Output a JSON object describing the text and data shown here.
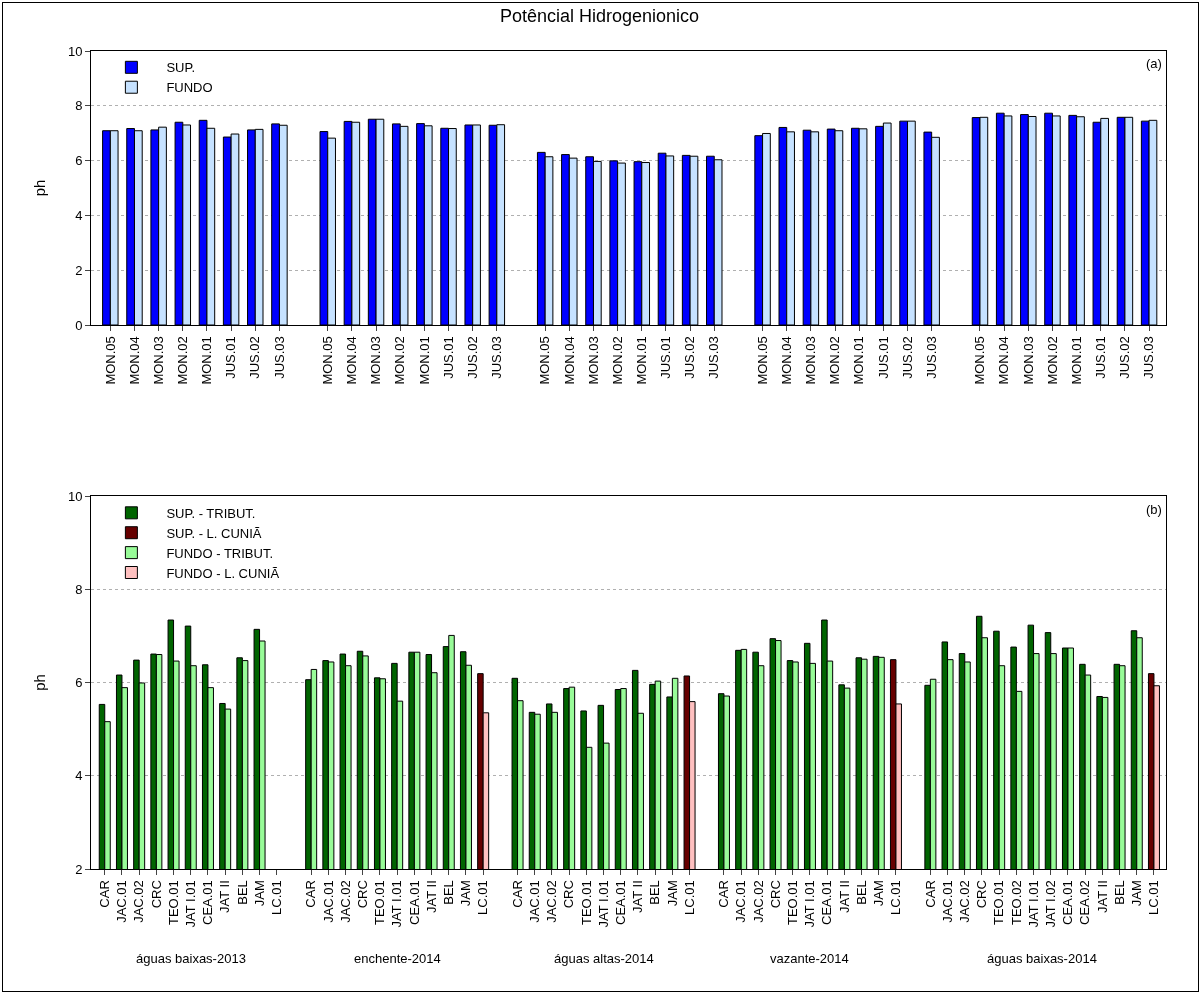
{
  "chart_data": [
    {
      "type": "bar",
      "title": "Potêncial Hidrogenionico",
      "ylabel": "ph",
      "categories": [
        "MON.05",
        "MON.04",
        "MON.03",
        "MON.02",
        "MON.01",
        "JUS.01",
        "JUS.02",
        "JUS.03",
        null,
        "MON.05",
        "MON.04",
        "MON.03",
        "MON.02",
        "MON.01",
        "JUS.01",
        "JUS.02",
        "JUS.03",
        null,
        "MON.05",
        "MON.04",
        "MON.03",
        "MON.02",
        "MON.01",
        "JUS.01",
        "JUS.02",
        "JUS.03",
        null,
        "MON.05",
        "MON.04",
        "MON.03",
        "MON.02",
        "MON.01",
        "JUS.01",
        "JUS.02",
        "JUS.03",
        null,
        "MON.05",
        "MON.04",
        "MON.03",
        "MON.02",
        "MON.01",
        "JUS.01",
        "JUS.02",
        "JUS.03"
      ],
      "series": [
        {
          "name": "SUP.",
          "color": "#0000ff",
          "values": [
            7.09,
            7.17,
            7.12,
            7.4,
            7.47,
            6.86,
            7.12,
            7.34,
            null,
            7.06,
            7.43,
            7.51,
            7.34,
            7.35,
            7.18,
            7.3,
            7.29,
            null,
            6.3,
            6.22,
            6.14,
            5.99,
            5.96,
            6.27,
            6.19,
            6.16,
            null,
            6.91,
            7.21,
            7.11,
            7.15,
            7.18,
            7.25,
            7.44,
            7.04,
            null,
            7.57,
            7.73,
            7.68,
            7.73,
            7.65,
            7.4,
            7.58,
            7.44
          ]
        },
        {
          "name": "FUNDO",
          "color": "#c6e2ff",
          "values": [
            7.09,
            7.09,
            7.22,
            7.3,
            7.18,
            6.97,
            7.14,
            7.29,
            null,
            6.82,
            7.4,
            7.51,
            7.25,
            7.27,
            7.17,
            7.3,
            7.31,
            null,
            6.14,
            6.09,
            5.97,
            5.91,
            5.93,
            6.17,
            6.16,
            6.03,
            null,
            6.99,
            7.05,
            7.05,
            7.09,
            7.16,
            7.37,
            7.44,
            6.85,
            null,
            7.58,
            7.63,
            7.61,
            7.63,
            7.6,
            7.54,
            7.58,
            7.47
          ]
        }
      ],
      "ylim": [
        0,
        10
      ],
      "yticks": [
        0,
        2,
        4,
        6,
        8,
        10
      ],
      "grid": "y",
      "legend": "top left",
      "annotations": [
        "(a)"
      ]
    },
    {
      "type": "bar",
      "ylabel": "ph",
      "categories": [
        "CAR",
        "JAC.01",
        "JAC.02",
        "CRC",
        "TEO.01",
        "JAT I.01",
        "CEA.01",
        "JAT II",
        "BEL",
        "JAM",
        "LC.01",
        null,
        "CAR",
        "JAC.01",
        "JAC.02",
        "CRC",
        "TEO.01",
        "JAT I.01",
        "CEA.01",
        "JAT II",
        "BEL",
        "JAM",
        "LC.01",
        null,
        "CAR",
        "JAC.01",
        "JAC.02",
        "CRC",
        "TEO.01",
        "JAT I.01",
        "CEA.01",
        "JAT II",
        "BEL",
        "JAM",
        "LC.01",
        null,
        "CAR",
        "JAC.01",
        "JAC.02",
        "CRC",
        "TEO.01",
        "JAT I.01",
        "CEA.01",
        "JAT II",
        "BEL",
        "JAM",
        "LC.01",
        null,
        "CAR",
        "JAC.01",
        "JAC.02",
        "CRC",
        "TEO.01",
        "TEO.02",
        "JAT I.01",
        "JAT I.02",
        "CEA.01",
        "CEA.02",
        "JAT II",
        "BEL",
        "JAM",
        "LC.01"
      ],
      "series": [
        {
          "name": "SUP. - TRIBUT.",
          "color": "#006400",
          "values": [
            5.53,
            6.16,
            6.48,
            6.61,
            7.34,
            7.21,
            6.38,
            5.55,
            6.53,
            7.14,
            null,
            null,
            6.06,
            6.47,
            6.61,
            6.67,
            6.1,
            6.41,
            6.65,
            6.6,
            6.77,
            6.66,
            null,
            null,
            6.09,
            5.36,
            5.54,
            5.87,
            5.39,
            5.51,
            5.85,
            6.26,
            5.96,
            5.69,
            null,
            null,
            5.76,
            6.69,
            6.65,
            6.94,
            6.47,
            6.84,
            7.34,
            5.95,
            6.53,
            6.56,
            null,
            null,
            5.94,
            6.87,
            6.62,
            7.42,
            7.1,
            6.76,
            7.23,
            7.07,
            6.74,
            6.39,
            5.7,
            6.39,
            7.11,
            null
          ]
        },
        {
          "name": "SUP. - L. CUNIÃ",
          "color": "#660000",
          "values": [
            null,
            null,
            null,
            null,
            null,
            null,
            null,
            null,
            null,
            null,
            null,
            null,
            null,
            null,
            null,
            null,
            null,
            null,
            null,
            null,
            null,
            null,
            6.19,
            null,
            null,
            null,
            null,
            null,
            null,
            null,
            null,
            null,
            null,
            null,
            6.14,
            null,
            null,
            null,
            null,
            null,
            null,
            null,
            null,
            null,
            null,
            null,
            6.49,
            null,
            null,
            null,
            null,
            null,
            null,
            null,
            null,
            null,
            null,
            null,
            null,
            null,
            null,
            6.19
          ]
        },
        {
          "name": "FUNDO - TRIBUT.",
          "color": "#98fb98",
          "values": [
            5.16,
            5.89,
            5.99,
            6.6,
            6.46,
            6.36,
            5.89,
            5.43,
            6.47,
            6.89,
            null,
            null,
            6.28,
            6.44,
            6.36,
            6.57,
            6.08,
            5.6,
            6.65,
            6.21,
            7.01,
            6.37,
            null,
            null,
            5.61,
            5.32,
            5.36,
            5.9,
            4.61,
            4.7,
            5.87,
            5.34,
            6.03,
            6.09,
            null,
            null,
            5.71,
            6.71,
            6.36,
            6.9,
            6.44,
            6.41,
            6.46,
            5.88,
            6.5,
            6.54,
            null,
            null,
            6.07,
            6.49,
            6.44,
            6.96,
            6.36,
            5.81,
            6.62,
            6.62,
            6.74,
            6.16,
            5.68,
            6.36,
            6.96,
            null
          ]
        },
        {
          "name": "FUNDO - L. CUNIÃ",
          "color": "#ffc0c0",
          "values": [
            null,
            null,
            null,
            null,
            null,
            null,
            null,
            null,
            null,
            null,
            null,
            null,
            null,
            null,
            null,
            null,
            null,
            null,
            null,
            null,
            null,
            null,
            5.35,
            null,
            null,
            null,
            null,
            null,
            null,
            null,
            null,
            null,
            null,
            null,
            5.59,
            null,
            null,
            null,
            null,
            null,
            null,
            null,
            null,
            null,
            null,
            null,
            5.54,
            null,
            null,
            null,
            null,
            null,
            null,
            null,
            null,
            null,
            null,
            null,
            null,
            null,
            null,
            5.93
          ]
        }
      ],
      "ylim": [
        2,
        10
      ],
      "yticks": [
        2,
        4,
        6,
        8,
        10
      ],
      "grid": "y",
      "legend": "top left",
      "annotations": [
        "(b)",
        "águas baixas-2013",
        "enchente-2014",
        "águas altas-2014",
        "vazante-2014",
        "águas baixas-2014"
      ]
    }
  ]
}
